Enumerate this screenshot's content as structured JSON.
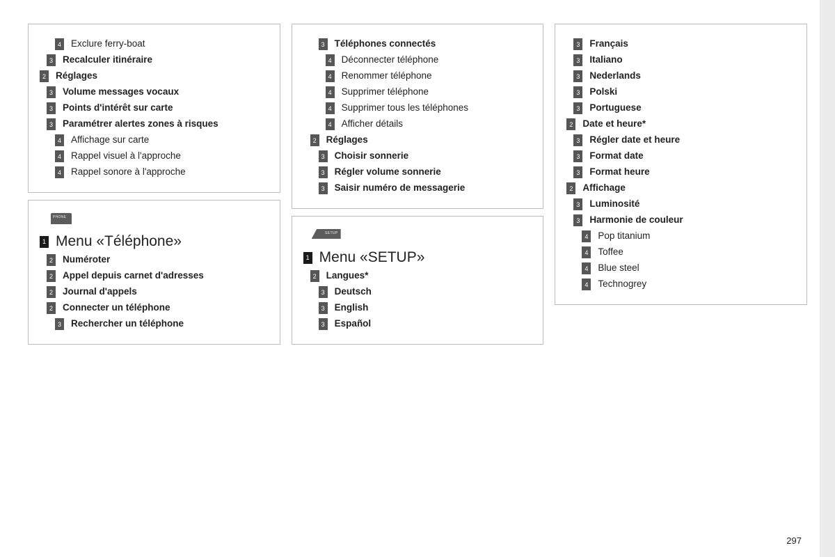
{
  "page_number": "297",
  "colors": {
    "border": "#bdbdbd",
    "badge_bg": "#565656",
    "badge_fg": "#ffffff",
    "text": "#222222",
    "right_band": "#ececec"
  },
  "columns": [
    {
      "boxes": [
        {
          "items": [
            {
              "level": 2,
              "bold": false,
              "text": "Exclure ferry-boat",
              "num": "4"
            },
            {
              "level": 1,
              "bold": true,
              "text": "Recalculer itinéraire",
              "num": "3"
            },
            {
              "level": 0,
              "bold": true,
              "text": "Réglages",
              "num": "2"
            },
            {
              "level": 1,
              "bold": true,
              "text": "Volume messages vocaux",
              "num": "3"
            },
            {
              "level": 1,
              "bold": true,
              "text": "Points d'intérêt sur carte",
              "num": "3"
            },
            {
              "level": 1,
              "bold": true,
              "text": "Paramétrer alertes zones à risques",
              "num": "3"
            },
            {
              "level": 2,
              "bold": false,
              "text": "Affichage sur carte",
              "num": "4"
            },
            {
              "level": 2,
              "bold": false,
              "text": "Rappel visuel à l'approche",
              "num": "4"
            },
            {
              "level": 2,
              "bold": false,
              "text": "Rappel sonore à l'approche",
              "num": "4"
            }
          ]
        },
        {
          "header": {
            "icon": "phone",
            "num": "1",
            "title": "Menu «Téléphone»"
          },
          "items": [
            {
              "level": 1,
              "bold": true,
              "text": "Numéroter",
              "num": "2"
            },
            {
              "level": 1,
              "bold": true,
              "text": "Appel depuis carnet d'adresses",
              "num": "2"
            },
            {
              "level": 1,
              "bold": true,
              "text": "Journal d'appels",
              "num": "2"
            },
            {
              "level": 1,
              "bold": true,
              "text": "Connecter un téléphone",
              "num": "2"
            },
            {
              "level": 2,
              "bold": true,
              "text": "Rechercher un téléphone",
              "num": "3"
            }
          ]
        }
      ]
    },
    {
      "boxes": [
        {
          "items": [
            {
              "level": 2,
              "bold": true,
              "text": "Téléphones connectés",
              "num": "3"
            },
            {
              "level": 3,
              "bold": false,
              "text": "Déconnecter téléphone",
              "num": "4"
            },
            {
              "level": 3,
              "bold": false,
              "text": "Renommer téléphone",
              "num": "4"
            },
            {
              "level": 3,
              "bold": false,
              "text": "Supprimer téléphone",
              "num": "4"
            },
            {
              "level": 3,
              "bold": false,
              "text": "Supprimer tous les téléphones",
              "num": "4"
            },
            {
              "level": 3,
              "bold": false,
              "text": "Afficher détails",
              "num": "4"
            },
            {
              "level": 1,
              "bold": true,
              "text": "Réglages",
              "num": "2"
            },
            {
              "level": 2,
              "bold": true,
              "text": "Choisir sonnerie",
              "num": "3"
            },
            {
              "level": 2,
              "bold": true,
              "text": "Régler volume sonnerie",
              "num": "3"
            },
            {
              "level": 2,
              "bold": true,
              "text": "Saisir numéro de messagerie",
              "num": "3"
            }
          ]
        },
        {
          "header": {
            "icon": "setup",
            "num": "1",
            "title": "Menu «SETUP»"
          },
          "items": [
            {
              "level": 1,
              "bold": true,
              "text": "Langues*",
              "num": "2"
            },
            {
              "level": 2,
              "bold": true,
              "text": "Deutsch",
              "num": "3"
            },
            {
              "level": 2,
              "bold": true,
              "text": "English",
              "num": "3"
            },
            {
              "level": 2,
              "bold": true,
              "text": "Español",
              "num": "3"
            }
          ]
        }
      ]
    },
    {
      "boxes": [
        {
          "items": [
            {
              "level": 1,
              "bold": true,
              "text": "Français",
              "num": "3"
            },
            {
              "level": 1,
              "bold": true,
              "text": "Italiano",
              "num": "3"
            },
            {
              "level": 1,
              "bold": true,
              "text": "Nederlands",
              "num": "3"
            },
            {
              "level": 1,
              "bold": true,
              "text": "Polski",
              "num": "3"
            },
            {
              "level": 1,
              "bold": true,
              "text": "Portuguese",
              "num": "3"
            },
            {
              "level": 0,
              "bold": true,
              "text": "Date et heure*",
              "num": "2"
            },
            {
              "level": 1,
              "bold": true,
              "text": "Régler date et heure",
              "num": "3"
            },
            {
              "level": 1,
              "bold": true,
              "text": "Format date",
              "num": "3"
            },
            {
              "level": 1,
              "bold": true,
              "text": "Format heure",
              "num": "3"
            },
            {
              "level": 0,
              "bold": true,
              "text": "Affichage",
              "num": "2"
            },
            {
              "level": 1,
              "bold": true,
              "text": "Luminosité",
              "num": "3"
            },
            {
              "level": 1,
              "bold": true,
              "text": "Harmonie de couleur",
              "num": "3"
            },
            {
              "level": 2,
              "bold": false,
              "text": "Pop titanium",
              "num": "4"
            },
            {
              "level": 2,
              "bold": false,
              "text": "Toffee",
              "num": "4"
            },
            {
              "level": 2,
              "bold": false,
              "text": "Blue steel",
              "num": "4"
            },
            {
              "level": 2,
              "bold": false,
              "text": "Technogrey",
              "num": "4"
            }
          ]
        }
      ]
    }
  ]
}
